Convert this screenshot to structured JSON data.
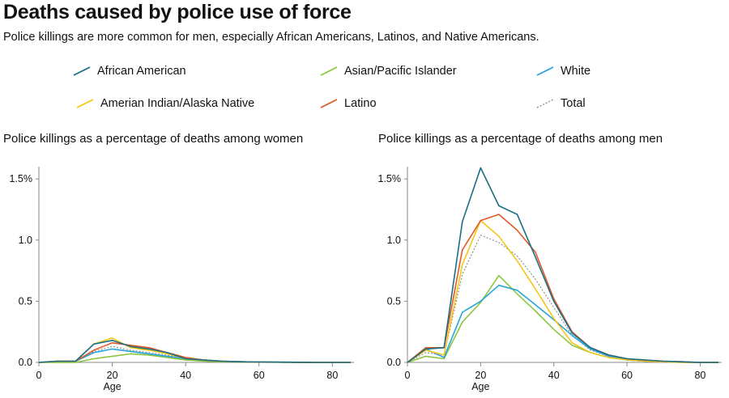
{
  "header": {
    "title": "Deaths caused by police use of force",
    "subtitle": "Police killings are more common for men, especially African Americans, Latinos, and Native Americans."
  },
  "legend": [
    {
      "label": "African American",
      "color": "#1b6e84",
      "dashed": false
    },
    {
      "label": "Asian/Pacific Islander",
      "color": "#8cc63f",
      "dashed": false
    },
    {
      "label": "White",
      "color": "#27a4dc",
      "dashed": false
    },
    {
      "label": "Amerian Indian/Alaska Native",
      "color": "#f5c518",
      "dashed": false
    },
    {
      "label": "Latino",
      "color": "#e05a28",
      "dashed": false
    },
    {
      "label": "Total",
      "color": "#888888",
      "dashed": true
    }
  ],
  "chart_data": [
    {
      "type": "line",
      "title": "Police killings as a percentage of deaths among women",
      "xlabel": "Age",
      "ylabel": "",
      "xlim": [
        0,
        85
      ],
      "ylim": [
        0,
        1.6
      ],
      "xticks": [
        0,
        20,
        40,
        60,
        80
      ],
      "xtick_labels": [
        "0",
        "20",
        "40",
        "60",
        "80"
      ],
      "yticks": [
        0,
        0.5,
        1.0,
        1.5
      ],
      "ytick_labels": [
        "0.0",
        "0.5",
        "1.0",
        "1.5%"
      ],
      "x": [
        0,
        5,
        10,
        15,
        20,
        25,
        30,
        35,
        40,
        45,
        50,
        55,
        60,
        65,
        70,
        75,
        80,
        85
      ],
      "series": [
        {
          "name": "African American",
          "values": [
            0,
            0.01,
            0.01,
            0.15,
            0.18,
            0.13,
            0.11,
            0.08,
            0.03,
            0.02,
            0.01,
            0.005,
            0.003,
            0.002,
            0.001,
            0,
            0,
            0
          ]
        },
        {
          "name": "Asian/Pacific Islander",
          "values": [
            0,
            0,
            0,
            0.03,
            0.05,
            0.07,
            0.06,
            0.04,
            0.02,
            0.01,
            0.005,
            0.003,
            0.002,
            0.001,
            0,
            0,
            0,
            0
          ]
        },
        {
          "name": "White",
          "values": [
            0,
            0.01,
            0.01,
            0.08,
            0.11,
            0.09,
            0.07,
            0.05,
            0.03,
            0.02,
            0.01,
            0.005,
            0.003,
            0.002,
            0.001,
            0,
            0,
            0
          ]
        },
        {
          "name": "Amerian Indian/Alaska Native",
          "values": [
            0,
            0.01,
            0.01,
            0.15,
            0.2,
            0.12,
            0.1,
            0.07,
            0.03,
            0.02,
            0.01,
            0.005,
            0.003,
            0.002,
            0.001,
            0,
            0,
            0
          ]
        },
        {
          "name": "Latino",
          "values": [
            0,
            0.01,
            0.01,
            0.1,
            0.16,
            0.14,
            0.12,
            0.08,
            0.04,
            0.02,
            0.01,
            0.005,
            0.003,
            0.002,
            0.001,
            0,
            0,
            0
          ]
        },
        {
          "name": "Total",
          "values": [
            0,
            0.01,
            0.01,
            0.09,
            0.13,
            0.1,
            0.08,
            0.06,
            0.03,
            0.02,
            0.01,
            0.005,
            0.003,
            0.002,
            0.001,
            0,
            0,
            0
          ]
        }
      ]
    },
    {
      "type": "line",
      "title": "Police killings as a percentage of deaths among men",
      "xlabel": "Age",
      "ylabel": "",
      "xlim": [
        0,
        85
      ],
      "ylim": [
        0,
        1.6
      ],
      "xticks": [
        0,
        20,
        40,
        60,
        80
      ],
      "xtick_labels": [
        "0",
        "20",
        "40",
        "60",
        "80"
      ],
      "yticks": [
        0,
        0.5,
        1.0,
        1.5
      ],
      "ytick_labels": [
        "0.0",
        "0.5",
        "1.0",
        "1.5%"
      ],
      "x": [
        0,
        5,
        10,
        15,
        20,
        25,
        30,
        35,
        40,
        45,
        50,
        55,
        60,
        65,
        70,
        75,
        80,
        85
      ],
      "series": [
        {
          "name": "African American",
          "values": [
            0,
            0.11,
            0.12,
            1.15,
            1.59,
            1.28,
            1.21,
            0.86,
            0.5,
            0.24,
            0.12,
            0.06,
            0.03,
            0.02,
            0.01,
            0.005,
            0,
            0
          ]
        },
        {
          "name": "Asian/Pacific Islander",
          "values": [
            0,
            0.05,
            0.03,
            0.33,
            0.49,
            0.71,
            0.56,
            0.42,
            0.27,
            0.14,
            0.08,
            0.04,
            0.02,
            0.01,
            0.005,
            0,
            0,
            0
          ]
        },
        {
          "name": "White",
          "values": [
            0,
            0.11,
            0.04,
            0.41,
            0.5,
            0.63,
            0.59,
            0.47,
            0.35,
            0.22,
            0.11,
            0.05,
            0.02,
            0.01,
            0.005,
            0,
            0,
            0
          ]
        },
        {
          "name": "Amerian Indian/Alaska Native",
          "values": [
            0,
            0.1,
            0.06,
            0.8,
            1.16,
            1.03,
            0.83,
            0.6,
            0.36,
            0.16,
            0.08,
            0.04,
            0.02,
            0.01,
            0.005,
            0,
            0,
            0
          ]
        },
        {
          "name": "Latino",
          "values": [
            0,
            0.12,
            0.12,
            0.92,
            1.16,
            1.21,
            1.08,
            0.9,
            0.52,
            0.25,
            0.12,
            0.06,
            0.03,
            0.02,
            0.01,
            0.005,
            0,
            0
          ]
        },
        {
          "name": "Total",
          "values": [
            0,
            0.08,
            0.06,
            0.72,
            1.04,
            0.98,
            0.87,
            0.68,
            0.45,
            0.22,
            0.1,
            0.05,
            0.02,
            0.01,
            0.005,
            0,
            0,
            0
          ]
        }
      ]
    }
  ]
}
